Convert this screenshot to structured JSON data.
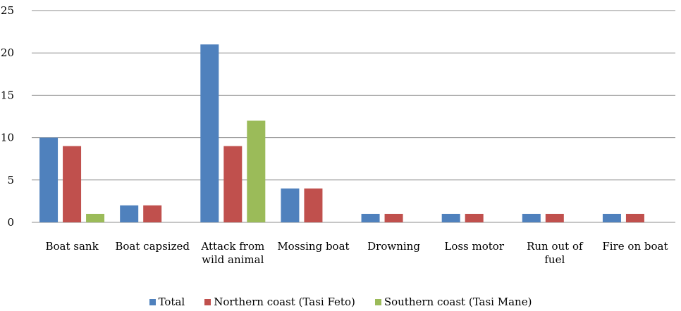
{
  "chart_data": {
    "type": "bar",
    "categories": [
      "Boat sank",
      "Boat capsized",
      "Attack from wild animal",
      "Mossing boat",
      "Drowning",
      "Loss motor",
      "Run out of fuel",
      "Fire on boat"
    ],
    "category_lines": [
      [
        "Boat sank"
      ],
      [
        "Boat capsized"
      ],
      [
        "Attack from",
        "wild animal"
      ],
      [
        "Mossing boat"
      ],
      [
        "Drowning"
      ],
      [
        "Loss motor"
      ],
      [
        "Run out of",
        "fuel"
      ],
      [
        "Fire on boat"
      ]
    ],
    "series": [
      {
        "name": "Total",
        "color": "#4f81bd",
        "values": [
          10,
          2,
          21,
          4,
          1,
          1,
          1,
          1
        ]
      },
      {
        "name": "Northern coast (Tasi Feto)",
        "color": "#c0504d",
        "values": [
          9,
          2,
          9,
          4,
          1,
          1,
          1,
          1
        ]
      },
      {
        "name": "Southern coast (Tasi Mane)",
        "color": "#9bbb59",
        "values": [
          1,
          0,
          12,
          0,
          0,
          0,
          0,
          0
        ]
      }
    ],
    "yticks": [
      "0",
      "5",
      "10",
      "15",
      "20",
      "25"
    ],
    "ylim": [
      0,
      25
    ],
    "grid": true,
    "legend_position": "bottom"
  }
}
